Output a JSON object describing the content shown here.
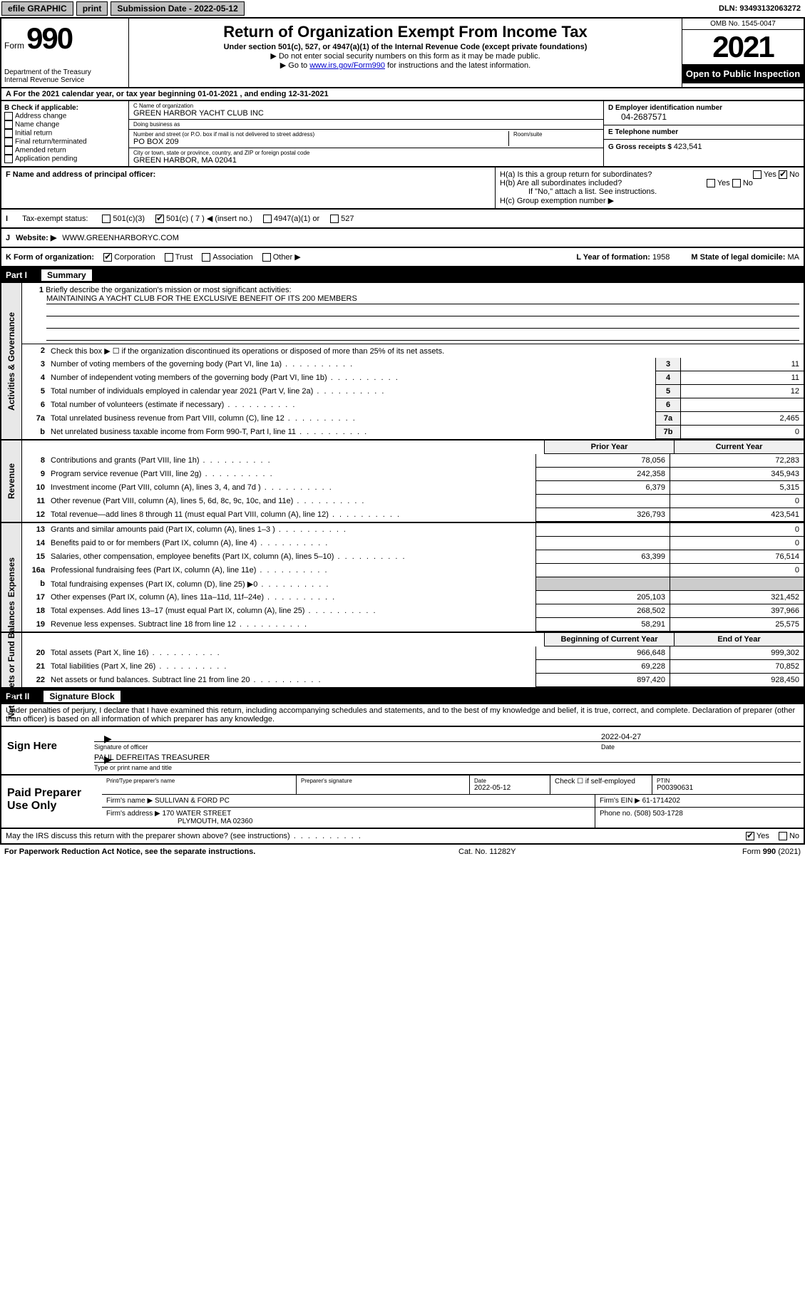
{
  "topbar": {
    "efile": "efile GRAPHIC",
    "print": "print",
    "subdate_label": "Submission Date - ",
    "subdate": "2022-05-12",
    "dln_label": "DLN: ",
    "dln": "93493132063272"
  },
  "header": {
    "form_word": "Form",
    "form_num": "990",
    "title": "Return of Organization Exempt From Income Tax",
    "sub1": "Under section 501(c), 527, or 4947(a)(1) of the Internal Revenue Code (except private foundations)",
    "sub2": "Do not enter social security numbers on this form as it may be made public.",
    "sub3_pre": "Go to ",
    "sub3_link": "www.irs.gov/Form990",
    "sub3_post": " for instructions and the latest information.",
    "dept": "Department of the Treasury\nInternal Revenue Service",
    "omb": "OMB No. 1545-0047",
    "year": "2021",
    "inspect": "Open to Public Inspection"
  },
  "row_a": {
    "pre": "For the 2021 calendar year, or tax year beginning ",
    "begin": "01-01-2021",
    "mid": " , and ending ",
    "end": "12-31-2021"
  },
  "col_b": {
    "label": "B Check if applicable:",
    "items": [
      "Address change",
      "Name change",
      "Initial return",
      "Final return/terminated",
      "Amended return",
      "Application pending"
    ]
  },
  "col_c": {
    "name_lbl": "C Name of organization",
    "name": "GREEN HARBOR YACHT CLUB INC",
    "dba_lbl": "Doing business as",
    "dba": "",
    "addr_lbl": "Number and street (or P.O. box if mail is not delivered to street address)",
    "room_lbl": "Room/suite",
    "addr": "PO BOX 209",
    "city_lbl": "City or town, state or province, country, and ZIP or foreign postal code",
    "city": "GREEN HARBOR, MA  02041"
  },
  "col_de": {
    "d_lbl": "D Employer identification number",
    "d_val": "04-2687571",
    "e_lbl": "E Telephone number",
    "e_val": "",
    "g_lbl": "G Gross receipts $ ",
    "g_val": "423,541"
  },
  "fgh": {
    "f_label": "F Name and address of principal officer:",
    "ha": "H(a)  Is this a group return for subordinates?",
    "hb": "H(b)  Are all subordinates included?",
    "hb_note": "If \"No,\" attach a list. See instructions.",
    "hc": "H(c)  Group exemption number ▶",
    "yes": "Yes",
    "no": "No"
  },
  "status": {
    "label": "Tax-exempt status:",
    "opts": [
      "501(c)(3)",
      "501(c) ( 7 ) ◀ (insert no.)",
      "4947(a)(1) or",
      "527"
    ]
  },
  "website": {
    "label": "Website: ▶",
    "value": "WWW.GREENHARBORYC.COM"
  },
  "k_row": {
    "k_label": "K Form of organization:",
    "k_opts": [
      "Corporation",
      "Trust",
      "Association",
      "Other ▶"
    ],
    "l_label": "L Year of formation: ",
    "l_val": "1958",
    "m_label": "M State of legal domicile: ",
    "m_val": "MA"
  },
  "part1": {
    "num": "Part I",
    "title": "Summary"
  },
  "tabs": {
    "gov": "Activities & Governance",
    "rev": "Revenue",
    "exp": "Expenses",
    "net": "Net Assets or Fund Balances"
  },
  "mission": {
    "line1_num": "1",
    "line1": "Briefly describe the organization's mission or most significant activities:",
    "text": "MAINTAINING A YACHT CLUB FOR THE EXCLUSIVE BENEFIT OF ITS 200 MEMBERS"
  },
  "gov_lines": [
    {
      "num": "2",
      "desc": "Check this box ▶ ☐  if the organization discontinued its operations or disposed of more than 25% of its net assets.",
      "box": "",
      "val": ""
    },
    {
      "num": "3",
      "desc": "Number of voting members of the governing body (Part VI, line 1a)",
      "box": "3",
      "val": "11"
    },
    {
      "num": "4",
      "desc": "Number of independent voting members of the governing body (Part VI, line 1b)",
      "box": "4",
      "val": "11"
    },
    {
      "num": "5",
      "desc": "Total number of individuals employed in calendar year 2021 (Part V, line 2a)",
      "box": "5",
      "val": "12"
    },
    {
      "num": "6",
      "desc": "Total number of volunteers (estimate if necessary)",
      "box": "6",
      "val": ""
    },
    {
      "num": "7a",
      "desc": "Total unrelated business revenue from Part VIII, column (C), line 12",
      "box": "7a",
      "val": "2,465"
    },
    {
      "num": "b",
      "desc": "Net unrelated business taxable income from Form 990-T, Part I, line 11",
      "box": "7b",
      "val": "0"
    }
  ],
  "two_col_hdr": {
    "prior": "Prior Year",
    "current": "Current Year"
  },
  "rev_lines": [
    {
      "num": "8",
      "desc": "Contributions and grants (Part VIII, line 1h)",
      "prior": "78,056",
      "current": "72,283"
    },
    {
      "num": "9",
      "desc": "Program service revenue (Part VIII, line 2g)",
      "prior": "242,358",
      "current": "345,943"
    },
    {
      "num": "10",
      "desc": "Investment income (Part VIII, column (A), lines 3, 4, and 7d )",
      "prior": "6,379",
      "current": "5,315"
    },
    {
      "num": "11",
      "desc": "Other revenue (Part VIII, column (A), lines 5, 6d, 8c, 9c, 10c, and 11e)",
      "prior": "",
      "current": "0"
    },
    {
      "num": "12",
      "desc": "Total revenue—add lines 8 through 11 (must equal Part VIII, column (A), line 12)",
      "prior": "326,793",
      "current": "423,541"
    }
  ],
  "exp_lines": [
    {
      "num": "13",
      "desc": "Grants and similar amounts paid (Part IX, column (A), lines 1–3 )",
      "prior": "",
      "current": "0"
    },
    {
      "num": "14",
      "desc": "Benefits paid to or for members (Part IX, column (A), line 4)",
      "prior": "",
      "current": "0"
    },
    {
      "num": "15",
      "desc": "Salaries, other compensation, employee benefits (Part IX, column (A), lines 5–10)",
      "prior": "63,399",
      "current": "76,514"
    },
    {
      "num": "16a",
      "desc": "Professional fundraising fees (Part IX, column (A), line 11e)",
      "prior": "",
      "current": "0"
    },
    {
      "num": "b",
      "desc": "Total fundraising expenses (Part IX, column (D), line 25) ▶0",
      "prior": "SHADED",
      "current": "SHADED"
    },
    {
      "num": "17",
      "desc": "Other expenses (Part IX, column (A), lines 11a–11d, 11f–24e)",
      "prior": "205,103",
      "current": "321,452"
    },
    {
      "num": "18",
      "desc": "Total expenses. Add lines 13–17 (must equal Part IX, column (A), line 25)",
      "prior": "268,502",
      "current": "397,966"
    },
    {
      "num": "19",
      "desc": "Revenue less expenses. Subtract line 18 from line 12",
      "prior": "58,291",
      "current": "25,575"
    }
  ],
  "net_hdr": {
    "prior": "Beginning of Current Year",
    "current": "End of Year"
  },
  "net_lines": [
    {
      "num": "20",
      "desc": "Total assets (Part X, line 16)",
      "prior": "966,648",
      "current": "999,302"
    },
    {
      "num": "21",
      "desc": "Total liabilities (Part X, line 26)",
      "prior": "69,228",
      "current": "70,852"
    },
    {
      "num": "22",
      "desc": "Net assets or fund balances. Subtract line 21 from line 20",
      "prior": "897,420",
      "current": "928,450"
    }
  ],
  "part2": {
    "num": "Part II",
    "title": "Signature Block"
  },
  "sig_text": "Under penalties of perjury, I declare that I have examined this return, including accompanying schedules and statements, and to the best of my knowledge and belief, it is true, correct, and complete. Declaration of preparer (other than officer) is based on all information of which preparer has any knowledge.",
  "sign": {
    "left": "Sign Here",
    "date": "2022-04-27",
    "sig_caption": "Signature of officer",
    "date_caption": "Date",
    "name": "PAUL DEFREITAS  TREASURER",
    "name_caption": "Type or print name and title"
  },
  "prep": {
    "left": "Paid Preparer Use Only",
    "r1": {
      "c1_lbl": "Print/Type preparer's name",
      "c1": "",
      "c2_lbl": "Preparer's signature",
      "c2": "",
      "c3_lbl": "Date",
      "c3": "2022-05-12",
      "c4_lbl": "Check ☐ if self-employed",
      "c5_lbl": "PTIN",
      "c5": "P00390631"
    },
    "r2": {
      "c1_lbl": "Firm's name    ▶ ",
      "c1": "SULLIVAN & FORD PC",
      "c2_lbl": "Firm's EIN ▶ ",
      "c2": "61-1714202"
    },
    "r3": {
      "c1_lbl": "Firm's address ▶ ",
      "c1a": "170 WATER STREET",
      "c1b": "PLYMOUTH, MA  02360",
      "c2_lbl": "Phone no. ",
      "c2": "(508) 503-1728"
    }
  },
  "discuss": {
    "text": "May the IRS discuss this return with the preparer shown above? (see instructions)",
    "yes": "Yes",
    "no": "No"
  },
  "footer": {
    "left": "For Paperwork Reduction Act Notice, see the separate instructions.",
    "mid": "Cat. No. 11282Y",
    "right_pre": "Form ",
    "right_form": "990",
    "right_post": " (2021)"
  }
}
